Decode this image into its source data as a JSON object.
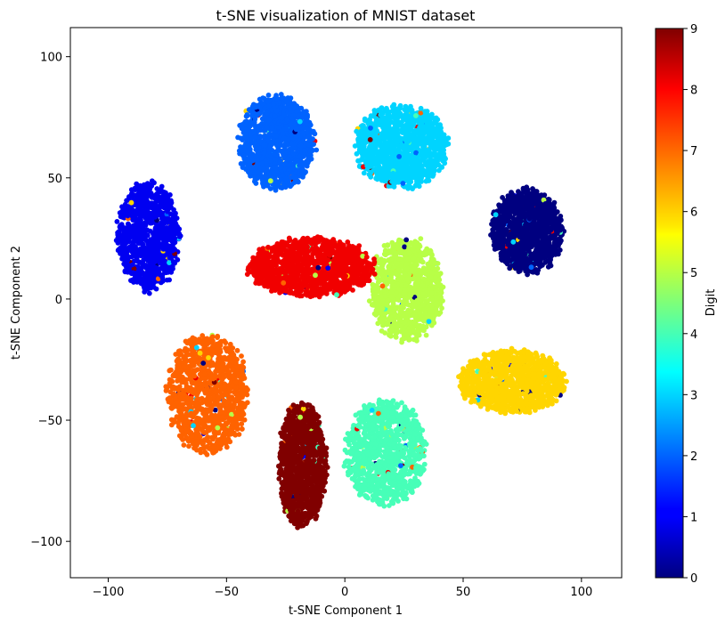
{
  "chart_data": {
    "type": "scatter",
    "title": "t-SNE visualization of MNIST dataset",
    "xlabel": "t-SNE Component 1",
    "ylabel": "t-SNE Component 2",
    "xlim": [
      -116,
      117
    ],
    "ylim": [
      -115,
      112
    ],
    "xticks": [
      -100,
      -50,
      0,
      50,
      100
    ],
    "yticks": [
      -100,
      -50,
      0,
      50,
      100
    ],
    "xtick_labels": [
      "−100",
      "−50",
      "0",
      "50",
      "100"
    ],
    "ytick_labels": [
      "−100",
      "−50",
      "0",
      "50",
      "100"
    ],
    "grid": false,
    "colormap": "jet",
    "colorbar": {
      "label": "Digit",
      "range": [
        0,
        9
      ],
      "ticks": [
        0,
        1,
        2,
        3,
        4,
        5,
        6,
        7,
        8,
        9
      ],
      "tick_labels": [
        "0",
        "1",
        "2",
        "3",
        "4",
        "5",
        "6",
        "7",
        "8",
        "9"
      ]
    },
    "clusters": [
      {
        "digit": 0,
        "center": [
          77,
          28
        ],
        "spread": [
          15,
          17
        ],
        "n": 1100
      },
      {
        "digit": 1,
        "center": [
          -83,
          26
        ],
        "spread": [
          13,
          22
        ],
        "n": 1000
      },
      {
        "digit": 2,
        "center": [
          -29,
          65
        ],
        "spread": [
          16,
          19
        ],
        "n": 1100
      },
      {
        "digit": 3,
        "center": [
          24,
          63
        ],
        "spread": [
          19,
          17
        ],
        "n": 1100
      },
      {
        "digit": 4,
        "center": [
          17,
          -63
        ],
        "spread": [
          17,
          21
        ],
        "n": 1000
      },
      {
        "digit": 5,
        "center": [
          26,
          4
        ],
        "spread": [
          15,
          21
        ],
        "n": 1000
      },
      {
        "digit": 6,
        "center": [
          71,
          -34
        ],
        "spread": [
          22,
          13
        ],
        "n": 1100
      },
      {
        "digit": 7,
        "center": [
          -58,
          -39
        ],
        "spread": [
          17,
          24
        ],
        "n": 1100
      },
      {
        "digit": 8,
        "center": [
          -14,
          13
        ],
        "spread": [
          26,
          12
        ],
        "n": 1200
      },
      {
        "digit": 9,
        "center": [
          -18,
          -68
        ],
        "spread": [
          10,
          25
        ],
        "n": 1100
      }
    ]
  }
}
